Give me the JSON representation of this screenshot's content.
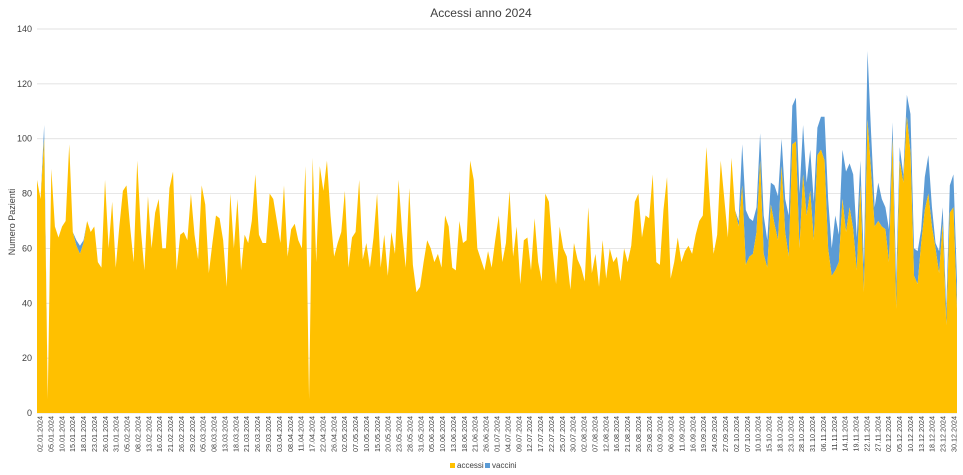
{
  "chart_data": {
    "type": "area",
    "title": "Accessi anno 2024",
    "ylabel": "Numero Pazienti",
    "xlabel": "",
    "ylim": [
      0,
      140
    ],
    "yticks": [
      0,
      20,
      40,
      60,
      80,
      100,
      120,
      140
    ],
    "grid": true,
    "legend_position": "bottom",
    "stacked": true,
    "x_tick_labels": [
      "02.01.2024",
      "05.01.2024",
      "10.01.2024",
      "15.01.2024",
      "18.01.2024",
      "23.01.2024",
      "26.01.2024",
      "31.01.2024",
      "05.02.2024",
      "08.02.2024",
      "13.02.2024",
      "16.02.2024",
      "21.02.2024",
      "26.02.2024",
      "29.02.2024",
      "05.03.2024",
      "08.03.2024",
      "13.03.2024",
      "18.03.2024",
      "21.03.2024",
      "26.03.2024",
      "29.03.2024",
      "03.04.2024",
      "08.04.2024",
      "11.04.2024",
      "17.04.2024",
      "22.04.2024",
      "26.04.2024",
      "02.05.2024",
      "07.05.2024",
      "10.05.2024",
      "15.05.2024",
      "20.05.2024",
      "23.05.2024",
      "28.05.2024",
      "31.05.2024",
      "05.06.2024",
      "10.06.2024",
      "13.06.2024",
      "18.06.2024",
      "21.06.2024",
      "26.06.2024",
      "01.07.2024",
      "04.07.2024",
      "09.07.2024",
      "12.07.2024",
      "17.07.2024",
      "22.07.2024",
      "25.07.2024",
      "30.07.2024",
      "02.08.2024",
      "07.08.2024",
      "12.08.2024",
      "16.08.2024",
      "21.08.2024",
      "26.08.2024",
      "29.08.2024",
      "03.09.2024",
      "06.09.2024",
      "11.09.2024",
      "16.09.2024",
      "19.09.2024",
      "24.09.2024",
      "27.09.2024",
      "02.10.2024",
      "07.10.2024",
      "10.10.2024",
      "15.10.2024",
      "18.10.2024",
      "23.10.2024",
      "28.10.2024",
      "31.10.2024",
      "06.11.2024",
      "11.11.2024",
      "14.11.2024",
      "19.11.2024",
      "22.11.2024",
      "27.11.2024",
      "02.12.2024",
      "05.12.2024",
      "10.12.2024",
      "13.12.2024",
      "18.12.2024",
      "23.12.2024",
      "30.12.2024"
    ],
    "series": [
      {
        "name": "accessi",
        "color": "#FFC000",
        "values": [
          85,
          78,
          100,
          5,
          89,
          68,
          64,
          68,
          70,
          98,
          66,
          61,
          58,
          62,
          70,
          66,
          68,
          55,
          53,
          85,
          60,
          77,
          53,
          68,
          81,
          83,
          68,
          55,
          92,
          67,
          52,
          79,
          60,
          73,
          78,
          60,
          60,
          82,
          88,
          52,
          65,
          66,
          63,
          80,
          65,
          56,
          83,
          76,
          51,
          62,
          72,
          71,
          63,
          46,
          80,
          60,
          78,
          52,
          65,
          62,
          70,
          87,
          65,
          62,
          62,
          80,
          78,
          70,
          62,
          83,
          57,
          67,
          69,
          63,
          60,
          90,
          5,
          93,
          55,
          90,
          81,
          92,
          72,
          57,
          62,
          66,
          81,
          53,
          64,
          66,
          85,
          56,
          62,
          53,
          64,
          80,
          53,
          65,
          50,
          66,
          58,
          85,
          66,
          53,
          82,
          54,
          44,
          46,
          55,
          63,
          60,
          55,
          58,
          53,
          72,
          68,
          53,
          52,
          70,
          62,
          63,
          92,
          85,
          60,
          56,
          52,
          59,
          53,
          63,
          72,
          55,
          62,
          81,
          57,
          68,
          47,
          63,
          64,
          52,
          71,
          55,
          48,
          80,
          77,
          60,
          47,
          68,
          60,
          57,
          45,
          62,
          56,
          53,
          48,
          75,
          51,
          58,
          46,
          63,
          49,
          60,
          55,
          57,
          48,
          60,
          55,
          61,
          77,
          80,
          64,
          72,
          71,
          87,
          55,
          54,
          74,
          86,
          49,
          55,
          64,
          55,
          59,
          61,
          58,
          65,
          70,
          72,
          97,
          76,
          58,
          65,
          92,
          78,
          64,
          93,
          74,
          68,
          83,
          54,
          57,
          58,
          66,
          92,
          58,
          53,
          76,
          69,
          63,
          90,
          66,
          57,
          98,
          99,
          60,
          87,
          72,
          81,
          63,
          94,
          96,
          92,
          60,
          50,
          52,
          55,
          78,
          66,
          75,
          67,
          52,
          83,
          44,
          107,
          88,
          68,
          70,
          68,
          67,
          55,
          100,
          38,
          92,
          84,
          108,
          95,
          50,
          47,
          62,
          74,
          80,
          68,
          60,
          51,
          69,
          32,
          73,
          75,
          38
        ],
        "_note": "daily-values"
      },
      {
        "name": "vaccini",
        "color": "#5B9BD5",
        "values": [
          0,
          0,
          5,
          0,
          0,
          0,
          0,
          0,
          0,
          0,
          0,
          2,
          3,
          1,
          0,
          0,
          0,
          0,
          0,
          0,
          0,
          0,
          0,
          0,
          0,
          0,
          0,
          0,
          0,
          0,
          0,
          0,
          0,
          0,
          0,
          0,
          0,
          0,
          0,
          0,
          0,
          0,
          0,
          0,
          0,
          0,
          0,
          0,
          0,
          0,
          0,
          0,
          0,
          0,
          0,
          0,
          0,
          0,
          0,
          0,
          0,
          0,
          0,
          0,
          0,
          0,
          0,
          0,
          0,
          0,
          0,
          0,
          0,
          0,
          0,
          0,
          0,
          0,
          0,
          0,
          0,
          0,
          0,
          0,
          0,
          0,
          0,
          0,
          0,
          0,
          0,
          0,
          0,
          0,
          0,
          0,
          0,
          0,
          0,
          0,
          0,
          0,
          0,
          0,
          0,
          0,
          0,
          0,
          0,
          0,
          0,
          0,
          0,
          0,
          0,
          0,
          0,
          0,
          0,
          0,
          0,
          0,
          0,
          0,
          0,
          0,
          0,
          0,
          0,
          0,
          0,
          0,
          0,
          0,
          0,
          0,
          0,
          0,
          0,
          0,
          0,
          0,
          0,
          0,
          0,
          0,
          0,
          0,
          0,
          0,
          0,
          0,
          0,
          0,
          0,
          0,
          0,
          0,
          0,
          0,
          0,
          0,
          0,
          0,
          0,
          0,
          0,
          0,
          0,
          0,
          0,
          0,
          0,
          0,
          0,
          0,
          0,
          0,
          0,
          0,
          0,
          0,
          0,
          0,
          0,
          0,
          0,
          0,
          0,
          0,
          0,
          0,
          0,
          0,
          0,
          0,
          2,
          15,
          20,
          14,
          12,
          9,
          10,
          14,
          10,
          8,
          14,
          16,
          10,
          12,
          15,
          14,
          16,
          20,
          18,
          12,
          15,
          14,
          10,
          12,
          16,
          18,
          10,
          20,
          10,
          18,
          22,
          16,
          20,
          12,
          9,
          10,
          25,
          14,
          7,
          14,
          10,
          8,
          12,
          6,
          10,
          5,
          3,
          8,
          14,
          10,
          12,
          5,
          12,
          14,
          7,
          2,
          8,
          6,
          6,
          10,
          12,
          10,
          14,
          6,
          10,
          8,
          12,
          4,
          10,
          7,
          0,
          0,
          2,
          0,
          0,
          0,
          0,
          0,
          0,
          0,
          0,
          0,
          0,
          0,
          0
        ]
      }
    ]
  }
}
